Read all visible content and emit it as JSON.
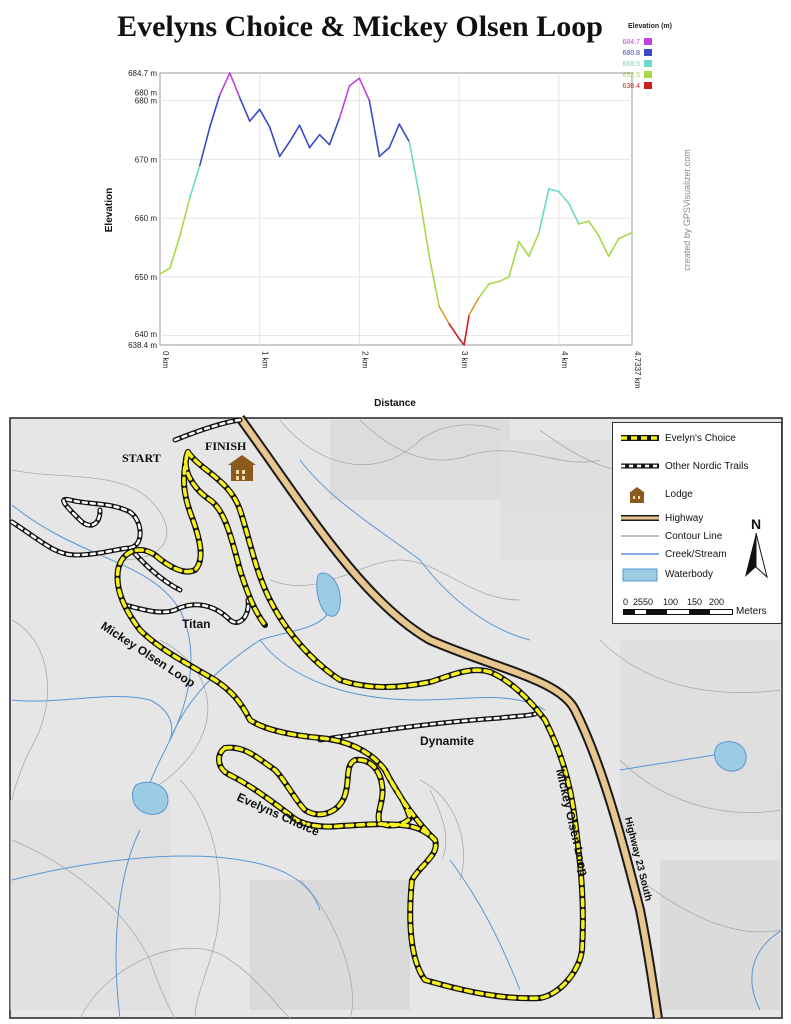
{
  "title": "Evelyns Choice & Mickey Olsen Loop",
  "profile_chart": {
    "ylabel": "Elevation",
    "xlabel": "Distance",
    "credit": "created by GPSVisualizer.com",
    "y_ticks": [
      "684.7 m",
      "680 m",
      "680 m",
      "670 m",
      "660 m",
      "650 m",
      "640 m",
      "638.4 m"
    ],
    "x_ticks": [
      "0 km",
      "1 km",
      "2 km",
      "3 km",
      "4 km",
      "4.7337 km"
    ],
    "color_legend_title": "Elevation (m)",
    "color_legend": [
      {
        "label": "684.7",
        "color": "#c040e0"
      },
      {
        "label": "680.8",
        "color": "#3b48c8"
      },
      {
        "label": "668.5",
        "color": "#6cd8c8"
      },
      {
        "label": "652.5",
        "color": "#a8d848"
      },
      {
        "label": "638.4",
        "color": "#c8201c"
      }
    ]
  },
  "chart_data": {
    "type": "line",
    "xlabel": "Distance",
    "ylabel": "Elevation",
    "xlim": [
      0,
      4.7337
    ],
    "ylim": [
      638.4,
      684.7
    ],
    "x": [
      0,
      0.1,
      0.2,
      0.3,
      0.4,
      0.5,
      0.6,
      0.7,
      0.8,
      0.9,
      1.0,
      1.1,
      1.2,
      1.3,
      1.4,
      1.5,
      1.6,
      1.7,
      1.8,
      1.9,
      2.0,
      2.1,
      2.2,
      2.3,
      2.4,
      2.5,
      2.6,
      2.7,
      2.8,
      2.9,
      3.0,
      3.05,
      3.1,
      3.2,
      3.3,
      3.4,
      3.5,
      3.6,
      3.7,
      3.8,
      3.9,
      4.0,
      4.1,
      4.2,
      4.3,
      4.4,
      4.5,
      4.6,
      4.7337
    ],
    "y": [
      650.5,
      651.5,
      657,
      663.5,
      669,
      675.5,
      681,
      684.7,
      680.5,
      676.5,
      678.5,
      675.5,
      670.5,
      673,
      675.8,
      672,
      674.2,
      672.5,
      677,
      682.5,
      683.8,
      680,
      670.5,
      672,
      676,
      673,
      664,
      653.5,
      645,
      642,
      639.5,
      638.4,
      643.5,
      646.5,
      648.8,
      649.2,
      650,
      656,
      653.5,
      657.5,
      665,
      664.5,
      662.5,
      659,
      659.5,
      657,
      653.5,
      656.5,
      657.5
    ]
  },
  "map_legend": [
    {
      "label": "Evelyn's Choice",
      "symbol": "evelyn"
    },
    {
      "label": "Other Nordic Trails",
      "symbol": "nordic"
    },
    {
      "label": "Lodge",
      "symbol": "lodge"
    },
    {
      "label": "Highway",
      "symbol": "highway"
    },
    {
      "label": "Contour Line",
      "symbol": "contour"
    },
    {
      "label": "Creek/Stream",
      "symbol": "creek"
    },
    {
      "label": "Waterbody",
      "symbol": "waterbody"
    }
  ],
  "scale_bar": {
    "ticks": [
      "0",
      "25",
      "50",
      "100",
      "150",
      "200"
    ],
    "unit": "Meters"
  },
  "north_label": "N",
  "map_labels": {
    "start": "START",
    "finish": "FINISH",
    "titan": "Titan",
    "mickey_west": "Mickey Olsen Loop",
    "mickey_east": "Mickey Olsen Loop",
    "dynamite": "Dynamite",
    "evelyns": "Evelyns Choice",
    "highway": "Highway 23 South"
  },
  "colors": {
    "evelyn_yellow": "#f5f01e",
    "highway_brown": "#c8a26a",
    "lodge_brown": "#8b5a1e",
    "creek_blue": "#5b95d6",
    "water_fill": "#9ccbe4"
  }
}
